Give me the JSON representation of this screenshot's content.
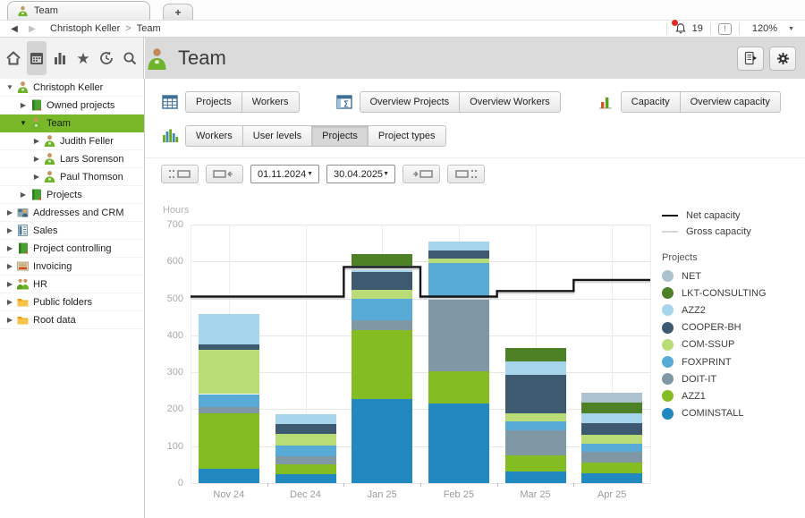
{
  "window": {
    "tab_label": "Team",
    "new_tab_label": "+"
  },
  "navbar": {
    "back_icon": "chevron-left",
    "forward_icon": "chevron-right",
    "breadcrumb": [
      "Christoph Keller",
      "Team"
    ],
    "crumb_separator": ">",
    "bell_icon": "notification-bell",
    "notifications_count": "19",
    "info_icon": "info",
    "zoom_level": "120%",
    "zoom_chevron": "▼"
  },
  "icon_strip": {
    "items": [
      {
        "icon": "home"
      },
      {
        "icon": "calendar",
        "active": true
      },
      {
        "icon": "bar-chart"
      },
      {
        "icon": "star"
      },
      {
        "icon": "history"
      },
      {
        "icon": "search"
      }
    ]
  },
  "header": {
    "title": "Team",
    "avatar_icon": "person-green",
    "buttons": [
      {
        "icon": "report"
      },
      {
        "icon": "gear"
      }
    ]
  },
  "sidebar": {
    "items": [
      {
        "label": "Christoph Keller",
        "level": 0,
        "arrow": "expanded",
        "icon": "person"
      },
      {
        "label": "Owned projects",
        "level": 1,
        "arrow": "collapsed",
        "icon": "book"
      },
      {
        "label": "Team",
        "level": 1,
        "arrow": "expanded",
        "icon": "person",
        "selected": true
      },
      {
        "label": "Judith Feller",
        "level": 2,
        "arrow": "collapsed",
        "icon": "person"
      },
      {
        "label": "Lars Sorenson",
        "level": 2,
        "arrow": "collapsed",
        "icon": "person"
      },
      {
        "label": "Paul Thomson",
        "level": 2,
        "arrow": "collapsed",
        "icon": "person"
      },
      {
        "label": "Projects",
        "level": 1,
        "arrow": "collapsed",
        "icon": "book"
      },
      {
        "label": "Addresses and CRM",
        "level": 0,
        "arrow": "collapsed",
        "icon": "addresses"
      },
      {
        "label": "Sales",
        "level": 0,
        "arrow": "collapsed",
        "icon": "sales"
      },
      {
        "label": "Project controlling",
        "level": 0,
        "arrow": "collapsed",
        "icon": "book"
      },
      {
        "label": "Invoicing",
        "level": 0,
        "arrow": "collapsed",
        "icon": "invoice"
      },
      {
        "label": "HR",
        "level": 0,
        "arrow": "collapsed",
        "icon": "people"
      },
      {
        "label": "Public folders",
        "level": 0,
        "arrow": "collapsed",
        "icon": "folder"
      },
      {
        "label": "Root data",
        "level": 0,
        "arrow": "collapsed",
        "icon": "folder"
      }
    ]
  },
  "toolbar": {
    "groups": [
      {
        "icon": "table-grid",
        "buttons": [
          {
            "label": "Projects"
          },
          {
            "label": "Workers"
          }
        ]
      },
      {
        "icon": "sigma-table",
        "buttons": [
          {
            "label": "Overview Projects"
          },
          {
            "label": "Overview Workers"
          }
        ]
      },
      {
        "icon": "mini-chart",
        "buttons": [
          {
            "label": "Capacity"
          },
          {
            "label": "Overview capacity"
          }
        ]
      }
    ],
    "view_tabs": {
      "icon": "stacked-bars",
      "buttons": [
        {
          "label": "Workers"
        },
        {
          "label": "User levels"
        },
        {
          "label": "Projects",
          "active": true
        },
        {
          "label": "Project types"
        }
      ]
    }
  },
  "date_controls": {
    "first_icon": "jump-to-start",
    "prev_icon": "shift-back",
    "start_date": "01.11.2024",
    "end_date": "30.04.2025",
    "next_icon": "shift-forward",
    "last_icon": "jump-to-end"
  },
  "chart_data": {
    "type": "bar",
    "stacked": true,
    "ylabel": "Hours",
    "ylim": [
      0,
      700
    ],
    "ytick_step": 100,
    "grid": true,
    "legend_position": "right",
    "categories": [
      "Nov 24",
      "Dec 24",
      "Jan 25",
      "Feb 25",
      "Mar 25",
      "Apr 25"
    ],
    "series": [
      {
        "name": "COMINSTALL",
        "color": "#2289c0",
        "values": [
          38,
          24,
          228,
          215,
          31,
          27
        ]
      },
      {
        "name": "AZZ1",
        "color": "#84bd22",
        "values": [
          151,
          28,
          187,
          88,
          44,
          28
        ]
      },
      {
        "name": "DOIT-IT",
        "color": "#8097a6",
        "values": [
          16,
          21,
          27,
          203,
          68,
          29
        ]
      },
      {
        "name": "FOXPRINT",
        "color": "#58aad7",
        "values": [
          36,
          29,
          58,
          91,
          24,
          23
        ]
      },
      {
        "name": "COM-SSUP",
        "color": "#b9dc77",
        "values": [
          119,
          31,
          24,
          12,
          22,
          24
        ]
      },
      {
        "name": "COOPER-BH",
        "color": "#3d5a70",
        "values": [
          15,
          26,
          48,
          20,
          105,
          31
        ]
      },
      {
        "name": "AZZ2",
        "color": "#a6d4eb",
        "values": [
          82,
          28,
          16,
          26,
          36,
          27
        ]
      },
      {
        "name": "LKT-CONSULTING",
        "color": "#4e8026",
        "values": [
          0,
          0,
          32,
          0,
          36,
          28
        ]
      },
      {
        "name": "NET",
        "color": "#acc2cf",
        "values": [
          0,
          0,
          0,
          0,
          0,
          27
        ]
      }
    ],
    "lines": [
      {
        "name": "Net capacity",
        "color": "#161616",
        "values": [
          505,
          505,
          585,
          505,
          520,
          550
        ]
      },
      {
        "name": "Gross capacity",
        "color": "#d7d7d7",
        "values": [
          505,
          505,
          585,
          505,
          520,
          550
        ]
      }
    ],
    "legend_title": "Projects",
    "legend_item_order": "reverse-of-stack"
  },
  "colors": {
    "selection_green": "#79b829",
    "header_gray": "#dbdbdb",
    "badge_red": "#e02b20"
  }
}
